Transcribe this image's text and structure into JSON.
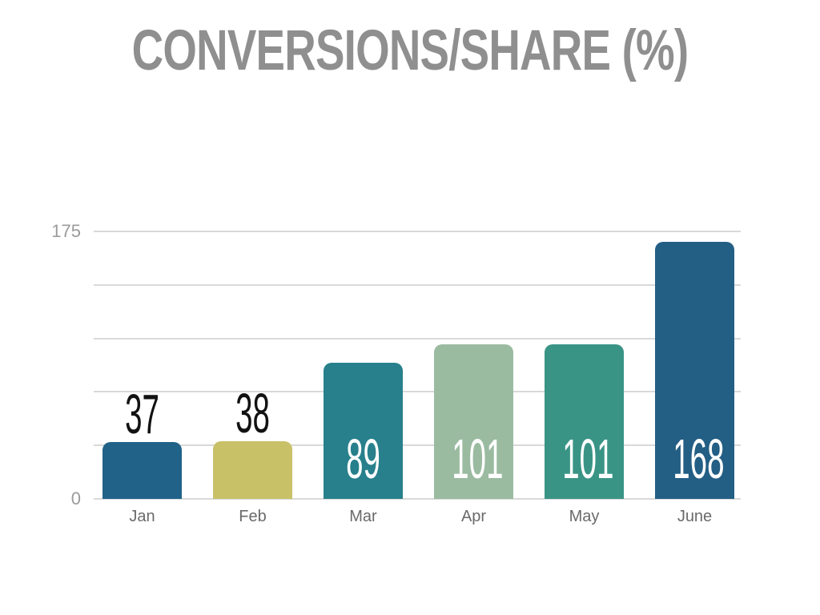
{
  "page": {
    "background": "#ffffff"
  },
  "colors": {
    "title": "#8f8f8f",
    "gridline": "#d9d9d9",
    "axis_tick_label": "#9b9b9b",
    "month_label": "#6a6a6a",
    "value_label_dark": "#121212",
    "value_label_light": "#ffffff"
  },
  "chart_data": {
    "type": "bar",
    "title": "CONVERSIONS/SHARE (%)",
    "categories": [
      "Jan",
      "Feb",
      "Mar",
      "Apr",
      "May",
      "June"
    ],
    "values": [
      37,
      38,
      89,
      101,
      101,
      168
    ],
    "bar_colors": [
      "#216288",
      "#c9c168",
      "#27808b",
      "#9bbba1",
      "#3a9486",
      "#235e84"
    ],
    "value_label_positions": [
      "above",
      "above",
      "inside",
      "inside",
      "inside",
      "inside"
    ],
    "value_label_colors": [
      "#121212",
      "#121212",
      "#ffffff",
      "#ffffff",
      "#ffffff",
      "#ffffff"
    ],
    "xlabel": "",
    "ylabel": "",
    "ylim": [
      0,
      175
    ],
    "yticks": [
      0,
      175
    ],
    "gridline_values": [
      0,
      35,
      70,
      105,
      140,
      175
    ],
    "grid": true,
    "legend": false
  }
}
